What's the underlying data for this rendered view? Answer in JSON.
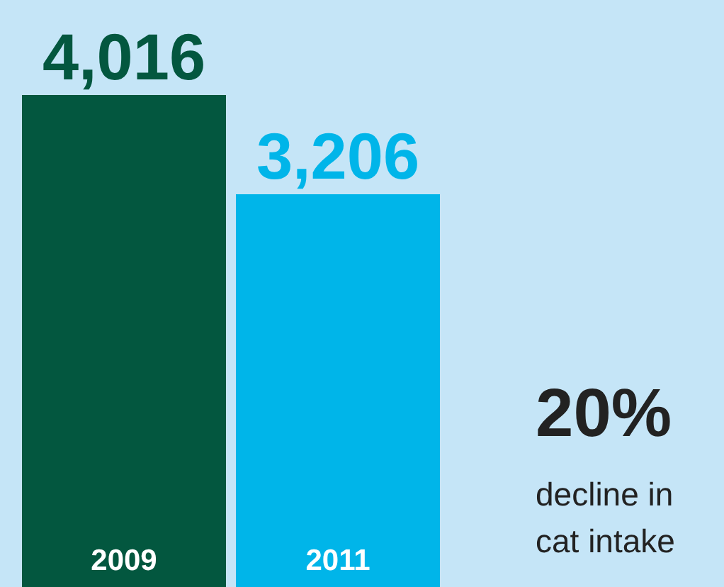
{
  "chart_data": {
    "type": "bar",
    "categories": [
      "2009",
      "2011"
    ],
    "values": [
      4016,
      3206
    ],
    "colors": [
      "#03573f",
      "#00b5e9"
    ],
    "value_labels": [
      "4,016",
      "3,206"
    ],
    "annotations": [
      "20%",
      "decline in cat intake"
    ],
    "grid": false
  }
}
